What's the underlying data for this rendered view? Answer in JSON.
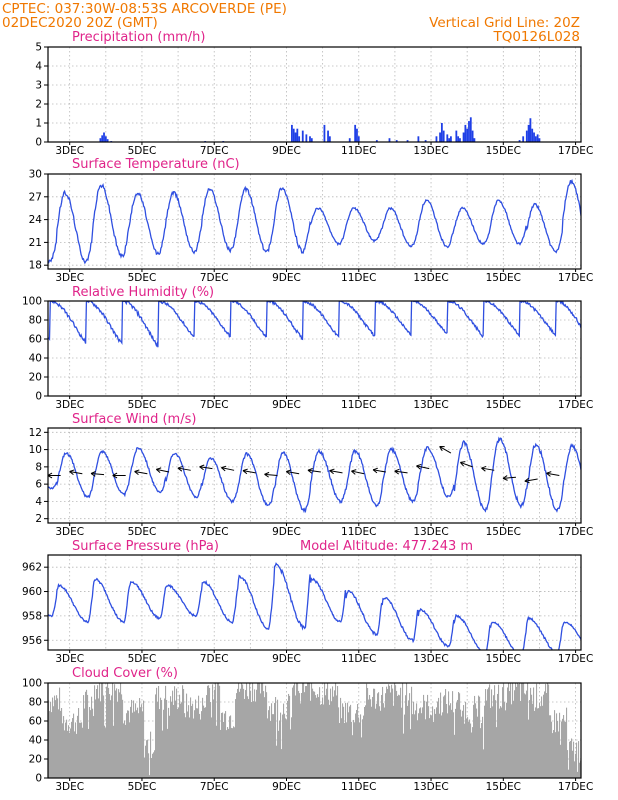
{
  "header": {
    "line1_left": "CPTEC:   037:30W-08:53S   ARCOVERDE (PE)",
    "line2_left": "02DEC2020 20Z (GMT)",
    "line1_right": "Vertical Grid Line: 20Z",
    "line2_right": "TQ0126L028"
  },
  "colors": {
    "header": "#f07800",
    "panel_title": "#e0248a",
    "series_line": "#2f4fe0",
    "precip_bar": "#1f3fe6",
    "cloud_fill": "#a6a6a6",
    "wind_arrow": "#000000"
  },
  "x_axis": {
    "tick_labels": [
      "3DEC",
      "5DEC",
      "7DEC",
      "9DEC",
      "11DEC",
      "13DEC",
      "15DEC",
      "17DEC"
    ]
  },
  "chart_data": [
    {
      "id": "precipitation",
      "type": "bar",
      "title": "Precipitation (mm/h)",
      "ylim": [
        0,
        5
      ],
      "yticks": [
        0,
        1,
        2,
        3,
        4,
        5
      ],
      "grid": true,
      "x_start_day": 2.25,
      "x_end_day": 17.0,
      "series_step_hours": 1,
      "bars": [
        [
          3.7,
          0.2
        ],
        [
          3.75,
          0.35
        ],
        [
          3.8,
          0.5
        ],
        [
          3.85,
          0.3
        ],
        [
          3.9,
          0.15
        ],
        [
          4.0,
          0.05
        ],
        [
          6.6,
          0.05
        ],
        [
          7.1,
          0.05
        ],
        [
          9.0,
          0.9
        ],
        [
          9.05,
          0.7
        ],
        [
          9.1,
          0.5
        ],
        [
          9.15,
          0.7
        ],
        [
          9.2,
          0.3
        ],
        [
          9.3,
          0.6
        ],
        [
          9.4,
          0.4
        ],
        [
          9.5,
          0.3
        ],
        [
          9.55,
          0.2
        ],
        [
          9.9,
          0.9
        ],
        [
          10.0,
          0.6
        ],
        [
          10.05,
          0.3
        ],
        [
          10.6,
          0.2
        ],
        [
          10.75,
          0.9
        ],
        [
          10.8,
          0.7
        ],
        [
          10.85,
          0.3
        ],
        [
          11.35,
          0.1
        ],
        [
          11.7,
          0.2
        ],
        [
          11.9,
          0.1
        ],
        [
          12.2,
          0.1
        ],
        [
          12.5,
          0.3
        ],
        [
          12.7,
          0.1
        ],
        [
          13.0,
          0.3
        ],
        [
          13.1,
          0.5
        ],
        [
          13.15,
          1.0
        ],
        [
          13.2,
          0.6
        ],
        [
          13.3,
          0.4
        ],
        [
          13.35,
          0.2
        ],
        [
          13.4,
          0.3
        ],
        [
          13.55,
          0.6
        ],
        [
          13.6,
          0.3
        ],
        [
          13.65,
          0.2
        ],
        [
          13.75,
          0.5
        ],
        [
          13.8,
          0.9
        ],
        [
          13.85,
          0.7
        ],
        [
          13.9,
          1.1
        ],
        [
          13.95,
          1.3
        ],
        [
          14.0,
          0.6
        ],
        [
          14.05,
          0.2
        ],
        [
          15.3,
          0.1
        ],
        [
          15.4,
          0.3
        ],
        [
          15.5,
          0.6
        ],
        [
          15.55,
          0.9
        ],
        [
          15.6,
          1.25
        ],
        [
          15.65,
          0.7
        ],
        [
          15.7,
          0.5
        ],
        [
          15.75,
          0.3
        ],
        [
          15.8,
          0.4
        ],
        [
          15.85,
          0.2
        ]
      ]
    },
    {
      "id": "temperature",
      "type": "line",
      "title": "Surface Temperature (nC)",
      "ylim": [
        17.5,
        30
      ],
      "yticks": [
        18,
        21,
        24,
        27,
        30
      ],
      "grid": true,
      "x_start_day": 2.25,
      "x_end_day": 17.0,
      "daily_max": [
        25.5,
        27.5,
        28.5,
        27.5,
        27.5,
        28.0,
        28.0,
        28.2,
        25.5,
        25.5,
        25.5,
        26.5,
        25.5,
        26.5,
        26.0,
        29.0,
        29.3
      ],
      "daily_min": [
        18.5,
        18.5,
        19.2,
        19.5,
        19.8,
        20.0,
        19.8,
        19.8,
        20.8,
        21.2,
        20.5,
        20.5,
        20.8,
        20.8,
        19.8,
        20.0,
        20.8
      ]
    },
    {
      "id": "humidity",
      "type": "line",
      "title": "Relative Humidity (%)",
      "ylim": [
        0,
        100
      ],
      "yticks": [
        0,
        20,
        40,
        60,
        80,
        100
      ],
      "grid": true,
      "x_start_day": 2.25,
      "x_end_day": 17.0,
      "daily_max": [
        100,
        100,
        100,
        100,
        100,
        100,
        100,
        100,
        100,
        100,
        100,
        100,
        100,
        100,
        100,
        100,
        98
      ],
      "daily_min": [
        50,
        45,
        43,
        40,
        52,
        53,
        52,
        50,
        52,
        53,
        55,
        57,
        53,
        55,
        55,
        45,
        42
      ]
    },
    {
      "id": "wind",
      "type": "line",
      "title": "Surface Wind (m/s)",
      "ylim": [
        1.5,
        12.5
      ],
      "yticks": [
        2,
        4,
        6,
        8,
        10,
        12
      ],
      "grid": true,
      "x_start_day": 2.25,
      "x_end_day": 17.0,
      "daily_max": [
        8.2,
        9.6,
        9.8,
        10.2,
        9.6,
        9.0,
        9.5,
        9.6,
        9.8,
        9.8,
        10.0,
        10.2,
        10.8,
        11.2,
        10.6,
        10.4,
        9.6
      ],
      "daily_min": [
        5.5,
        4.5,
        4.8,
        5.0,
        4.5,
        4.0,
        3.5,
        3.0,
        4.0,
        3.5,
        4.0,
        4.5,
        3.0,
        3.5,
        3.0,
        3.5,
        4.0
      ],
      "wind_arrows": [
        [
          2.6,
          7.0,
          180
        ],
        [
          3.2,
          7.2,
          170
        ],
        [
          3.8,
          7.1,
          175
        ],
        [
          4.4,
          7.0,
          180
        ],
        [
          5.0,
          7.2,
          170
        ],
        [
          5.6,
          7.4,
          168
        ],
        [
          6.2,
          7.6,
          170
        ],
        [
          6.8,
          7.8,
          172
        ],
        [
          7.4,
          7.6,
          168
        ],
        [
          8.0,
          7.3,
          170
        ],
        [
          8.6,
          7.0,
          175
        ],
        [
          9.2,
          7.2,
          170
        ],
        [
          9.8,
          7.4,
          172
        ],
        [
          10.4,
          7.3,
          170
        ],
        [
          11.0,
          7.2,
          168
        ],
        [
          11.6,
          7.4,
          170
        ],
        [
          12.2,
          7.3,
          172
        ],
        [
          12.8,
          7.8,
          168
        ],
        [
          13.4,
          9.6,
          150
        ],
        [
          14.0,
          8.0,
          160
        ],
        [
          14.6,
          7.6,
          170
        ],
        [
          15.2,
          6.8,
          185
        ],
        [
          15.8,
          6.6,
          190
        ],
        [
          16.4,
          7.0,
          170
        ]
      ]
    },
    {
      "id": "pressure",
      "type": "line",
      "title": "Surface Pressure (hPa)",
      "annotation": "Model Altitude: 477.243 m",
      "ylim": [
        955.2,
        963
      ],
      "yticks": [
        956,
        958,
        960,
        962
      ],
      "grid": true,
      "x_start_day": 2.25,
      "x_end_day": 17.0,
      "daily_max": [
        960.0,
        960.5,
        961.0,
        960.8,
        960.5,
        960.8,
        961.2,
        962.2,
        961.0,
        960.0,
        959.5,
        958.5,
        958.0,
        957.5,
        957.8,
        957.5,
        957.8
      ],
      "daily_min": [
        958.0,
        957.5,
        957.5,
        957.8,
        958.0,
        957.5,
        957.0,
        957.0,
        957.5,
        956.5,
        956.0,
        955.5,
        955.0,
        954.8,
        955.0,
        955.2,
        955.5
      ]
    },
    {
      "id": "cloud",
      "type": "area",
      "title": "Cloud Cover (%)",
      "ylim": [
        0,
        100
      ],
      "yticks": [
        0,
        20,
        40,
        60,
        80,
        100
      ],
      "grid": true,
      "x_start_day": 2.25,
      "x_end_day": 17.0,
      "segments": [
        [
          2.25,
          2.6,
          82
        ],
        [
          2.6,
          3.2,
          60
        ],
        [
          3.2,
          3.5,
          80
        ],
        [
          3.5,
          4.3,
          95
        ],
        [
          4.3,
          4.9,
          70
        ],
        [
          4.9,
          5.2,
          35
        ],
        [
          5.2,
          6.0,
          85
        ],
        [
          6.0,
          6.6,
          75
        ],
        [
          6.6,
          7.0,
          95
        ],
        [
          7.0,
          7.4,
          65
        ],
        [
          7.4,
          8.3,
          95
        ],
        [
          8.3,
          9.0,
          75
        ],
        [
          9.0,
          9.7,
          95
        ],
        [
          9.7,
          10.3,
          90
        ],
        [
          10.3,
          11.0,
          70
        ],
        [
          11.0,
          11.6,
          85
        ],
        [
          11.6,
          12.3,
          88
        ],
        [
          12.3,
          13.0,
          75
        ],
        [
          13.0,
          13.7,
          80
        ],
        [
          13.7,
          14.3,
          72
        ],
        [
          14.3,
          15.0,
          86
        ],
        [
          15.0,
          15.6,
          92
        ],
        [
          15.6,
          16.1,
          85
        ],
        [
          16.1,
          16.6,
          60
        ],
        [
          16.6,
          17.0,
          30
        ]
      ]
    }
  ]
}
